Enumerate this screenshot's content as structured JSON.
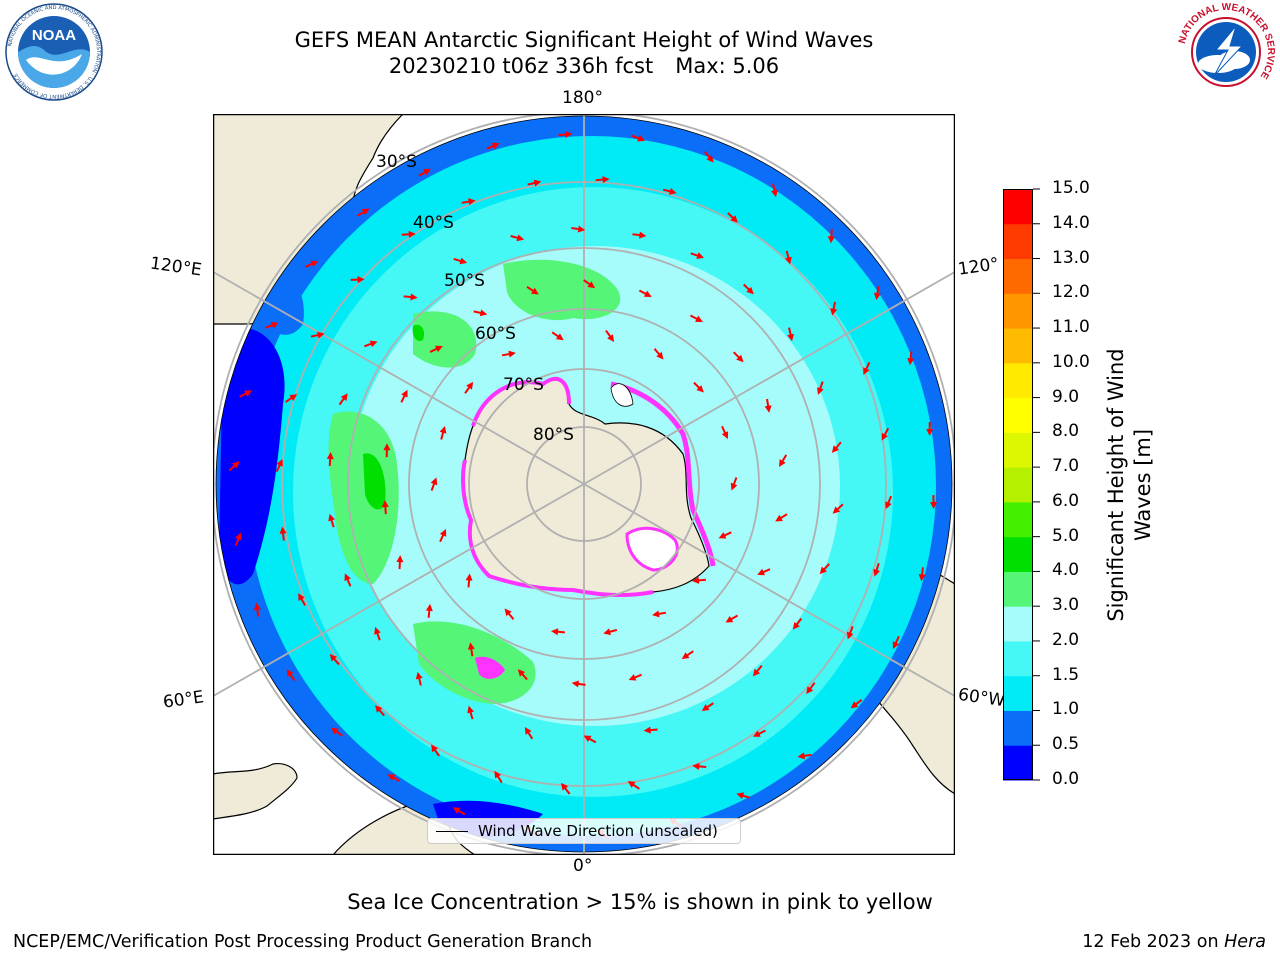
{
  "header": {
    "title_line1": "GEFS MEAN Antarctic Significant Height of Wind Waves",
    "title_line2": "20230210 t06z 336h fcst",
    "max_label": "Max: 5.06"
  },
  "map": {
    "projection": "south-polar-stereographic",
    "lon_labels": {
      "top": "180°",
      "bottom": "0°",
      "left_upper": "120°E",
      "left_lower": "60°E",
      "right_upper": "120°",
      "right_lower": "60°W"
    },
    "lat_labels": [
      "30°S",
      "40°S",
      "50°S",
      "60°S",
      "70°S",
      "80°S"
    ],
    "colors": {
      "land": "#efebd8",
      "ocean_background": "#ffffff",
      "graticule": "#b0b0b0",
      "arrows": "#ff0000",
      "sea_ice": "#ff33ff"
    }
  },
  "legend": {
    "label": "Wind Wave Direction (unscaled)"
  },
  "colorbar": {
    "label_line1": "Significant Height of Wind",
    "label_line2": "Waves [m]",
    "ticks": [
      "0.0",
      "0.5",
      "1.0",
      "1.5",
      "2.0",
      "3.0",
      "4.0",
      "5.0",
      "6.0",
      "7.0",
      "8.0",
      "9.0",
      "10.0",
      "11.0",
      "12.0",
      "13.0",
      "14.0",
      "15.0"
    ],
    "colors": [
      "#0000ff",
      "#0a6ef8",
      "#00ebf5",
      "#45f7f5",
      "#a5fcfa",
      "#55f578",
      "#00e000",
      "#44f000",
      "#b4f000",
      "#ddf700",
      "#ffff00",
      "#ffea00",
      "#ffbb00",
      "#ff9600",
      "#ff6a00",
      "#ff3a00",
      "#ff0000"
    ]
  },
  "footer": {
    "caption": "Sea Ice Concentration > 15% is shown in pink to yellow",
    "left": "NCEP/EMC/Verification Post Processing Product Generation Branch",
    "right_date": "12 Feb 2023 on",
    "right_machine": "Hera"
  },
  "logos": {
    "noaa": {
      "icon": "noaa-logo",
      "text": "NOAA",
      "ring_text": "NATIONAL OCEANIC AND ATMOSPHERIC ADMINISTRATION · U.S. DEPARTMENT OF COMMERCE"
    },
    "nws": {
      "icon": "nws-logo",
      "ring_text": "NATIONAL WEATHER SERVICE"
    }
  }
}
